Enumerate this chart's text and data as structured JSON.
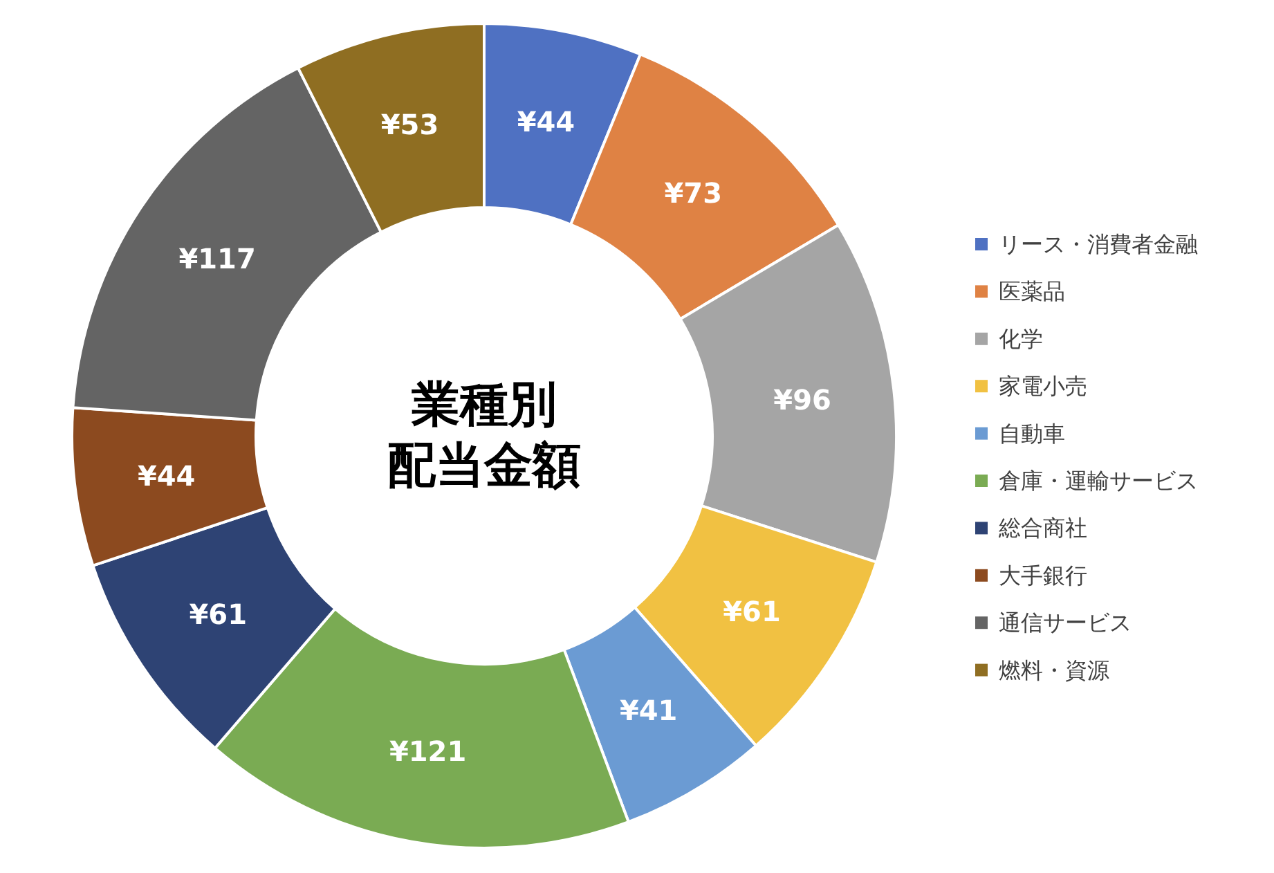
{
  "chart_data": {
    "type": "donut",
    "title": "業種別配当金額",
    "categories": [
      "リース・消費者金融",
      "医薬品",
      "化学",
      "家電小売",
      "自動車",
      "倉庫・運輸サービス",
      "総合商社",
      "大手銀行",
      "通信サービス",
      "燃料・資源"
    ],
    "values": [
      44,
      73,
      96,
      61,
      41,
      121,
      61,
      44,
      117,
      53
    ],
    "value_labels": [
      "¥44",
      "¥73",
      "¥96",
      "¥61",
      "¥41",
      "¥121",
      "¥61",
      "¥44",
      "¥117",
      "¥53"
    ],
    "colors": [
      "#4f71c2",
      "#df8244",
      "#a5a5a5",
      "#f1c142",
      "#6b9bd3",
      "#7aab53",
      "#2e4374",
      "#8c4a1f",
      "#646464",
      "#8f6e22"
    ],
    "legend": "right"
  }
}
